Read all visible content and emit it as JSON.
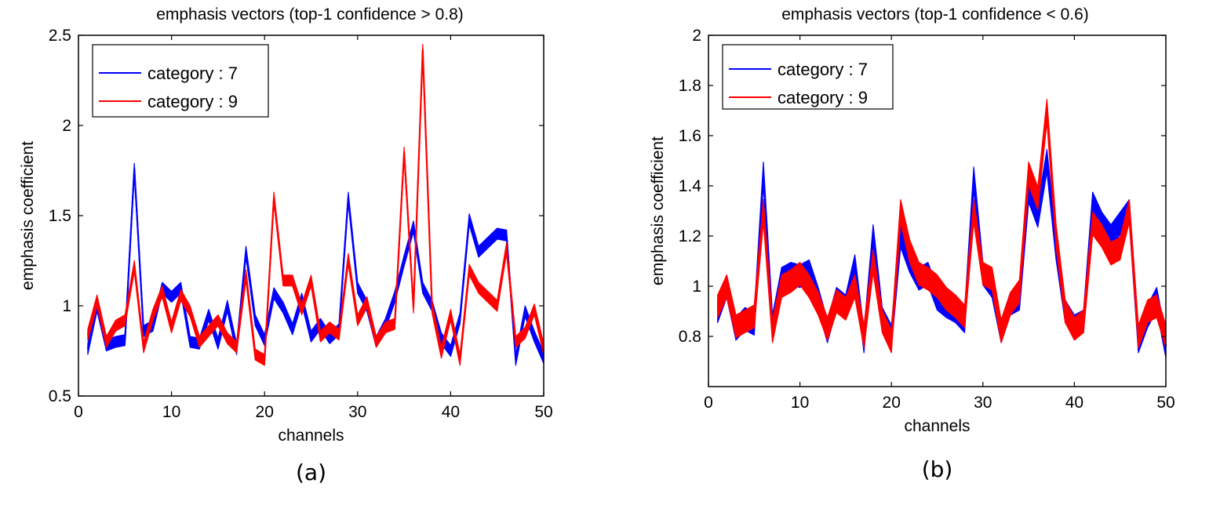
{
  "chart_data": [
    {
      "type": "line",
      "title": "emphasis vectors (top-1 confidence > 0.8)",
      "xlabel": "channels",
      "ylabel": "emphasis coefficient",
      "panel_label": "(a)",
      "xlim": [
        0,
        50
      ],
      "ylim": [
        0.5,
        2.5
      ],
      "xticks": [
        0,
        10,
        20,
        30,
        40,
        50
      ],
      "yticks": [
        0.5,
        1,
        1.5,
        2,
        2.5
      ],
      "ytick_labels": [
        "0.5",
        "1",
        "1.5",
        "2",
        "2.5"
      ],
      "grid": false,
      "legend_position": "top-left",
      "x": [
        1,
        2,
        3,
        4,
        5,
        6,
        7,
        8,
        9,
        10,
        11,
        12,
        13,
        14,
        15,
        16,
        17,
        18,
        19,
        20,
        21,
        22,
        23,
        24,
        25,
        26,
        27,
        28,
        29,
        30,
        31,
        32,
        33,
        34,
        35,
        36,
        37,
        38,
        39,
        40,
        41,
        42,
        43,
        44,
        45,
        46,
        47,
        48,
        49,
        50
      ],
      "series": [
        {
          "name": "category : 7",
          "color": "#0000ff",
          "band": 0.03,
          "values": [
            0.76,
            1.0,
            0.78,
            0.8,
            0.81,
            1.76,
            0.86,
            0.89,
            1.1,
            1.05,
            1.1,
            0.8,
            0.79,
            0.95,
            0.79,
            1.0,
            0.76,
            1.3,
            0.92,
            0.81,
            1.07,
            0.99,
            0.87,
            1.04,
            0.83,
            0.9,
            0.82,
            0.87,
            1.6,
            1.1,
            1.0,
            0.8,
            0.9,
            1.05,
            1.25,
            1.44,
            1.1,
            1.0,
            0.82,
            0.75,
            0.93,
            1.48,
            1.3,
            1.35,
            1.4,
            1.39,
            0.7,
            0.97,
            0.83,
            0.71
          ]
        },
        {
          "name": "category : 9",
          "color": "#ff0000",
          "band": 0.03,
          "values": [
            0.84,
            1.03,
            0.8,
            0.89,
            0.92,
            1.22,
            0.77,
            0.95,
            1.08,
            0.88,
            1.06,
            0.97,
            0.8,
            0.86,
            0.92,
            0.82,
            0.77,
            1.17,
            0.73,
            0.7,
            1.6,
            1.14,
            1.14,
            0.98,
            1.14,
            0.83,
            0.88,
            0.84,
            1.26,
            0.92,
            1.02,
            0.8,
            0.88,
            0.9,
            1.85,
            0.99,
            2.42,
            0.99,
            0.74,
            0.95,
            0.7,
            1.2,
            1.1,
            1.05,
            1.0,
            1.32,
            0.8,
            0.85,
            0.98,
            0.76
          ]
        }
      ]
    },
    {
      "type": "line",
      "title": "emphasis vectors (top-1 confidence < 0.6)",
      "xlabel": "channels",
      "ylabel": "emphasis coefficient",
      "panel_label": "(b)",
      "xlim": [
        0,
        50
      ],
      "ylim": [
        0.6,
        2.0
      ],
      "xticks": [
        0,
        10,
        20,
        30,
        40,
        50
      ],
      "yticks": [
        0.8,
        1.0,
        1.2,
        1.4,
        1.6,
        1.8,
        2.0
      ],
      "ytick_labels": [
        "0.8",
        "1",
        "1.2",
        "1.4",
        "1.6",
        "1.8",
        "2"
      ],
      "grid": false,
      "legend_position": "top-left",
      "x": [
        1,
        2,
        3,
        4,
        5,
        6,
        7,
        8,
        9,
        10,
        11,
        12,
        13,
        14,
        15,
        16,
        17,
        18,
        19,
        20,
        21,
        22,
        23,
        24,
        25,
        26,
        27,
        28,
        29,
        30,
        31,
        32,
        33,
        34,
        35,
        36,
        37,
        38,
        39,
        40,
        41,
        42,
        43,
        44,
        45,
        46,
        47,
        48,
        49,
        50
      ],
      "series": [
        {
          "name": "category : 7",
          "color": "#0000ff",
          "band": 0.045,
          "values": [
            0.9,
            1.0,
            0.83,
            0.87,
            0.85,
            1.45,
            0.84,
            1.03,
            1.05,
            1.04,
            1.06,
            0.95,
            0.82,
            0.95,
            0.92,
            1.08,
            0.78,
            1.2,
            0.87,
            0.8,
            1.2,
            1.1,
            1.03,
            1.05,
            0.95,
            0.92,
            0.9,
            0.86,
            1.43,
            1.05,
            1.0,
            0.82,
            0.93,
            0.95,
            1.38,
            1.28,
            1.5,
            1.15,
            0.9,
            0.84,
            0.86,
            1.33,
            1.25,
            1.2,
            1.25,
            1.3,
            0.78,
            0.88,
            0.95,
            0.76
          ]
        },
        {
          "name": "category : 9",
          "color": "#ff0000",
          "band": 0.045,
          "values": [
            0.92,
            1.0,
            0.84,
            0.86,
            0.88,
            1.3,
            0.82,
            1.0,
            1.02,
            1.05,
            1.0,
            0.93,
            0.83,
            0.94,
            0.91,
            1.0,
            0.8,
            1.1,
            0.86,
            0.78,
            1.3,
            1.14,
            1.05,
            1.03,
            1.0,
            0.95,
            0.92,
            0.88,
            1.3,
            1.05,
            1.03,
            0.82,
            0.93,
            0.98,
            1.45,
            1.35,
            1.7,
            1.2,
            0.9,
            0.83,
            0.86,
            1.25,
            1.2,
            1.13,
            1.15,
            1.3,
            0.8,
            0.9,
            0.92,
            0.8
          ]
        }
      ]
    }
  ]
}
